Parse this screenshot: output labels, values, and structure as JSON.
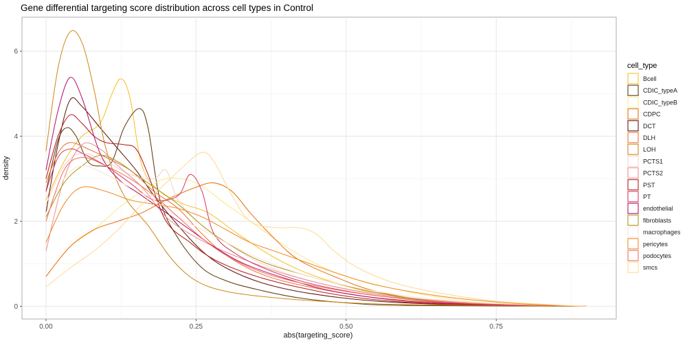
{
  "chart_data": {
    "type": "line",
    "title": "Gene differential targeting score distribution across cell types in Control",
    "xlabel": "abs(targeting_score)",
    "ylabel": "density",
    "xlim": [
      -0.04,
      0.95
    ],
    "ylim": [
      -0.3,
      6.8
    ],
    "x_ticks": [
      0,
      0.25,
      0.5,
      0.75
    ],
    "x_tick_labels": [
      "0.00",
      "0.25",
      "0.50",
      "0.75"
    ],
    "y_ticks": [
      0,
      2,
      4,
      6
    ],
    "y_tick_labels": [
      "0",
      "2",
      "4",
      "6"
    ],
    "grid": true,
    "legend": {
      "title": "cell_type",
      "placement": "right"
    },
    "series": [
      {
        "name": "Bcell",
        "color": "#F6C02B",
        "points": [
          [
            0,
            2.5
          ],
          [
            0.03,
            3.4
          ],
          [
            0.06,
            4.0
          ],
          [
            0.09,
            4.3
          ],
          [
            0.11,
            5.0
          ],
          [
            0.125,
            5.35
          ],
          [
            0.14,
            4.9
          ],
          [
            0.16,
            3.3
          ],
          [
            0.19,
            2.7
          ],
          [
            0.23,
            2.4
          ],
          [
            0.27,
            2.2
          ],
          [
            0.32,
            1.7
          ],
          [
            0.38,
            1.15
          ],
          [
            0.45,
            0.7
          ],
          [
            0.55,
            0.3
          ],
          [
            0.65,
            0.12
          ],
          [
            0.75,
            0.04
          ],
          [
            0.9,
            0
          ]
        ]
      },
      {
        "name": "CDIC_typeA",
        "color": "#5E3B0F",
        "points": [
          [
            0,
            2.7
          ],
          [
            0.02,
            3.9
          ],
          [
            0.035,
            4.2
          ],
          [
            0.05,
            4.0
          ],
          [
            0.07,
            3.4
          ],
          [
            0.09,
            3.3
          ],
          [
            0.11,
            3.4
          ],
          [
            0.13,
            4.2
          ],
          [
            0.155,
            4.65
          ],
          [
            0.17,
            4.2
          ],
          [
            0.19,
            2.5
          ],
          [
            0.22,
            1.6
          ],
          [
            0.26,
            0.9
          ],
          [
            0.3,
            0.6
          ],
          [
            0.35,
            0.4
          ],
          [
            0.42,
            0.2
          ],
          [
            0.5,
            0.08
          ],
          [
            0.6,
            0.02
          ],
          [
            0.9,
            0
          ]
        ]
      },
      {
        "name": "CDIC_typeB",
        "color": "#FAEA8A",
        "points": [
          [
            0,
            0.7
          ],
          [
            0.04,
            1.4
          ],
          [
            0.08,
            1.8
          ],
          [
            0.12,
            2.3
          ],
          [
            0.16,
            2.7
          ],
          [
            0.2,
            3.0
          ],
          [
            0.25,
            2.9
          ],
          [
            0.3,
            2.4
          ],
          [
            0.35,
            1.9
          ],
          [
            0.4,
            1.4
          ],
          [
            0.45,
            1.0
          ],
          [
            0.5,
            0.7
          ],
          [
            0.6,
            0.35
          ],
          [
            0.7,
            0.12
          ],
          [
            0.8,
            0.04
          ],
          [
            0.9,
            0
          ]
        ]
      },
      {
        "name": "CDPC",
        "color": "#E8740F",
        "points": [
          [
            0,
            0.7
          ],
          [
            0.04,
            1.4
          ],
          [
            0.08,
            1.8
          ],
          [
            0.12,
            2.0
          ],
          [
            0.16,
            2.2
          ],
          [
            0.2,
            2.5
          ],
          [
            0.25,
            2.8
          ],
          [
            0.28,
            2.9
          ],
          [
            0.31,
            2.7
          ],
          [
            0.34,
            2.2
          ],
          [
            0.38,
            1.6
          ],
          [
            0.42,
            1.1
          ],
          [
            0.48,
            0.7
          ],
          [
            0.55,
            0.35
          ],
          [
            0.65,
            0.12
          ],
          [
            0.75,
            0.04
          ],
          [
            0.9,
            0
          ]
        ]
      },
      {
        "name": "DCT",
        "color": "#5C1A10",
        "points": [
          [
            0,
            2.2
          ],
          [
            0.02,
            3.8
          ],
          [
            0.04,
            4.85
          ],
          [
            0.06,
            4.7
          ],
          [
            0.09,
            4.2
          ],
          [
            0.12,
            3.7
          ],
          [
            0.15,
            3.2
          ],
          [
            0.18,
            2.6
          ],
          [
            0.22,
            1.9
          ],
          [
            0.26,
            1.3
          ],
          [
            0.3,
            0.9
          ],
          [
            0.36,
            0.55
          ],
          [
            0.44,
            0.3
          ],
          [
            0.55,
            0.12
          ],
          [
            0.7,
            0.03
          ],
          [
            0.9,
            0
          ]
        ]
      },
      {
        "name": "DLH",
        "color": "#E9733A",
        "points": [
          [
            0,
            2.9
          ],
          [
            0.02,
            3.6
          ],
          [
            0.04,
            3.85
          ],
          [
            0.07,
            3.7
          ],
          [
            0.1,
            3.5
          ],
          [
            0.14,
            3.2
          ],
          [
            0.18,
            2.7
          ],
          [
            0.22,
            2.3
          ],
          [
            0.26,
            1.7
          ],
          [
            0.3,
            1.2
          ],
          [
            0.36,
            0.75
          ],
          [
            0.44,
            0.45
          ],
          [
            0.55,
            0.2
          ],
          [
            0.7,
            0.06
          ],
          [
            0.9,
            0
          ]
        ]
      },
      {
        "name": "LOH",
        "color": "#D08A1C",
        "points": [
          [
            0,
            3.65
          ],
          [
            0.02,
            5.6
          ],
          [
            0.04,
            6.45
          ],
          [
            0.06,
            6.2
          ],
          [
            0.08,
            5.1
          ],
          [
            0.1,
            3.7
          ],
          [
            0.13,
            2.6
          ],
          [
            0.17,
            1.9
          ],
          [
            0.21,
            1.1
          ],
          [
            0.25,
            0.6
          ],
          [
            0.3,
            0.35
          ],
          [
            0.38,
            0.2
          ],
          [
            0.48,
            0.1
          ],
          [
            0.6,
            0.04
          ],
          [
            0.9,
            0
          ]
        ]
      },
      {
        "name": "PCTS1",
        "color": "#F9CFCF",
        "points": [
          [
            0,
            2.4
          ],
          [
            0.03,
            3.3
          ],
          [
            0.06,
            3.6
          ],
          [
            0.1,
            3.4
          ],
          [
            0.14,
            3.1
          ],
          [
            0.18,
            3.0
          ],
          [
            0.2,
            3.2
          ],
          [
            0.22,
            2.5
          ],
          [
            0.26,
            1.9
          ],
          [
            0.3,
            1.5
          ],
          [
            0.36,
            1.0
          ],
          [
            0.44,
            0.6
          ],
          [
            0.55,
            0.3
          ],
          [
            0.7,
            0.08
          ],
          [
            0.9,
            0
          ]
        ]
      },
      {
        "name": "PCTS2",
        "color": "#E59292",
        "points": [
          [
            0,
            1.3
          ],
          [
            0.03,
            3.0
          ],
          [
            0.06,
            3.8
          ],
          [
            0.09,
            3.7
          ],
          [
            0.12,
            3.3
          ],
          [
            0.16,
            2.8
          ],
          [
            0.2,
            2.1
          ],
          [
            0.24,
            1.7
          ],
          [
            0.28,
            1.4
          ],
          [
            0.33,
            1.1
          ],
          [
            0.4,
            0.75
          ],
          [
            0.5,
            0.4
          ],
          [
            0.6,
            0.2
          ],
          [
            0.75,
            0.05
          ],
          [
            0.9,
            0
          ]
        ]
      },
      {
        "name": "PST",
        "color": "#B71C1C",
        "points": [
          [
            0,
            3.0
          ],
          [
            0.02,
            4.0
          ],
          [
            0.04,
            4.5
          ],
          [
            0.06,
            4.3
          ],
          [
            0.08,
            4.0
          ],
          [
            0.1,
            3.85
          ],
          [
            0.13,
            3.8
          ],
          [
            0.15,
            3.7
          ],
          [
            0.17,
            3.1
          ],
          [
            0.2,
            2.0
          ],
          [
            0.24,
            1.5
          ],
          [
            0.28,
            1.1
          ],
          [
            0.34,
            0.75
          ],
          [
            0.42,
            0.45
          ],
          [
            0.52,
            0.2
          ],
          [
            0.65,
            0.06
          ],
          [
            0.9,
            0
          ]
        ]
      },
      {
        "name": "PT",
        "color": "#D63C62",
        "points": [
          [
            0,
            2.7
          ],
          [
            0.02,
            3.5
          ],
          [
            0.04,
            3.7
          ],
          [
            0.06,
            3.6
          ],
          [
            0.1,
            3.3
          ],
          [
            0.14,
            2.9
          ],
          [
            0.18,
            2.5
          ],
          [
            0.22,
            2.6
          ],
          [
            0.24,
            3.1
          ],
          [
            0.26,
            2.7
          ],
          [
            0.28,
            1.7
          ],
          [
            0.32,
            1.2
          ],
          [
            0.38,
            0.8
          ],
          [
            0.45,
            0.5
          ],
          [
            0.55,
            0.25
          ],
          [
            0.7,
            0.06
          ],
          [
            0.9,
            0
          ]
        ]
      },
      {
        "name": "endothelial",
        "color": "#B5136B",
        "points": [
          [
            0,
            3.2
          ],
          [
            0.02,
            4.6
          ],
          [
            0.04,
            5.38
          ],
          [
            0.06,
            4.9
          ],
          [
            0.09,
            3.6
          ],
          [
            0.12,
            3.0
          ],
          [
            0.16,
            2.6
          ],
          [
            0.2,
            2.2
          ],
          [
            0.24,
            1.8
          ],
          [
            0.28,
            1.4
          ],
          [
            0.33,
            1.0
          ],
          [
            0.4,
            0.65
          ],
          [
            0.48,
            0.35
          ],
          [
            0.6,
            0.12
          ],
          [
            0.75,
            0.03
          ],
          [
            0.9,
            0
          ]
        ]
      },
      {
        "name": "fibroblasts",
        "color": "#A89A1E",
        "points": [
          [
            0,
            2.1
          ],
          [
            0.03,
            2.9
          ],
          [
            0.06,
            3.3
          ],
          [
            0.09,
            3.55
          ],
          [
            0.12,
            3.4
          ],
          [
            0.15,
            3.1
          ],
          [
            0.18,
            2.8
          ],
          [
            0.22,
            2.4
          ],
          [
            0.26,
            1.9
          ],
          [
            0.3,
            1.5
          ],
          [
            0.36,
            1.05
          ],
          [
            0.44,
            0.7
          ],
          [
            0.54,
            0.35
          ],
          [
            0.65,
            0.12
          ],
          [
            0.8,
            0.02
          ],
          [
            0.9,
            0
          ]
        ]
      },
      {
        "name": "macrophages",
        "color": "#FCE4D6",
        "points": [
          [
            0,
            2.2
          ],
          [
            0.03,
            3.0
          ],
          [
            0.06,
            3.3
          ],
          [
            0.1,
            3.1
          ],
          [
            0.14,
            2.8
          ],
          [
            0.18,
            2.5
          ],
          [
            0.22,
            2.1
          ],
          [
            0.26,
            1.8
          ],
          [
            0.3,
            1.5
          ],
          [
            0.36,
            1.1
          ],
          [
            0.44,
            0.7
          ],
          [
            0.55,
            0.35
          ],
          [
            0.7,
            0.1
          ],
          [
            0.9,
            0
          ]
        ]
      },
      {
        "name": "pericytes",
        "color": "#F28C28",
        "points": [
          [
            0,
            1.5
          ],
          [
            0.03,
            2.4
          ],
          [
            0.06,
            2.8
          ],
          [
            0.1,
            2.7
          ],
          [
            0.14,
            2.5
          ],
          [
            0.18,
            2.4
          ],
          [
            0.22,
            2.3
          ],
          [
            0.26,
            2.1
          ],
          [
            0.3,
            1.8
          ],
          [
            0.34,
            1.5
          ],
          [
            0.38,
            1.3
          ],
          [
            0.42,
            1.1
          ],
          [
            0.48,
            0.8
          ],
          [
            0.55,
            0.5
          ],
          [
            0.65,
            0.25
          ],
          [
            0.75,
            0.1
          ],
          [
            0.85,
            0.02
          ],
          [
            0.9,
            0
          ]
        ]
      },
      {
        "name": "podocytes",
        "color": "#F07060",
        "points": [
          [
            0,
            2.0
          ],
          [
            0.03,
            3.2
          ],
          [
            0.06,
            3.5
          ],
          [
            0.1,
            3.3
          ],
          [
            0.14,
            3.0
          ],
          [
            0.18,
            2.6
          ],
          [
            0.22,
            2.1
          ],
          [
            0.26,
            1.6
          ],
          [
            0.3,
            1.2
          ],
          [
            0.36,
            0.8
          ],
          [
            0.44,
            0.5
          ],
          [
            0.55,
            0.25
          ],
          [
            0.7,
            0.07
          ],
          [
            0.9,
            0
          ]
        ]
      },
      {
        "name": "smcs",
        "color": "#FDDB94",
        "points": [
          [
            0,
            0.45
          ],
          [
            0.04,
            0.9
          ],
          [
            0.08,
            1.3
          ],
          [
            0.12,
            1.8
          ],
          [
            0.16,
            2.4
          ],
          [
            0.2,
            2.9
          ],
          [
            0.23,
            3.3
          ],
          [
            0.26,
            3.62
          ],
          [
            0.28,
            3.4
          ],
          [
            0.31,
            2.6
          ],
          [
            0.34,
            2.0
          ],
          [
            0.38,
            1.85
          ],
          [
            0.42,
            1.85
          ],
          [
            0.45,
            1.7
          ],
          [
            0.48,
            1.3
          ],
          [
            0.52,
            0.9
          ],
          [
            0.58,
            0.55
          ],
          [
            0.66,
            0.3
          ],
          [
            0.75,
            0.12
          ],
          [
            0.85,
            0.03
          ],
          [
            0.9,
            0
          ]
        ]
      }
    ]
  }
}
